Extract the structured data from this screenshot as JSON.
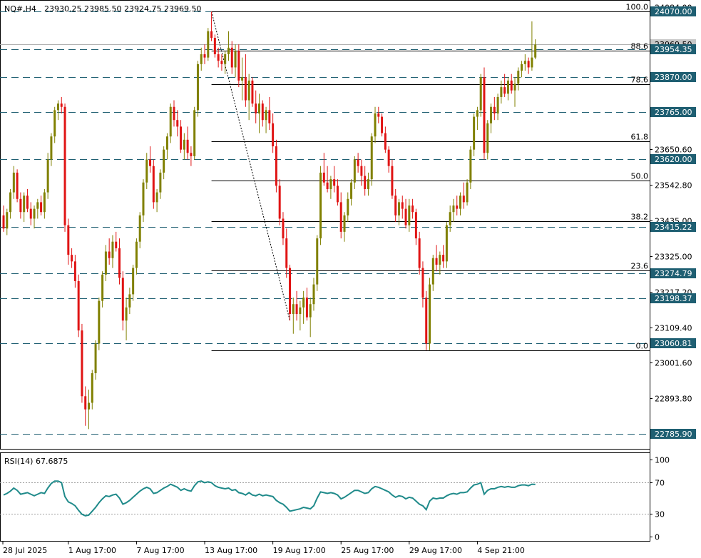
{
  "header": {
    "symbol": "NQ#,H4",
    "ohlc": "23930.25 23985.50 23924.75 23969.50"
  },
  "chart_data": [
    {
      "type": "candlestick",
      "symbol": "NQ#",
      "timeframe": "H4",
      "ohlc_last": {
        "open": 23930.25,
        "high": 23985.5,
        "low": 23924.75,
        "close": 23969.5
      },
      "ylim": [
        22740,
        24105
      ],
      "y_ticks": [
        24084.0,
        23650.6,
        23542.8,
        23435.0,
        23325.0,
        23217.2,
        23109.4,
        23001.6,
        22893.8
      ],
      "x_ticks": [
        "28 Jul 2025",
        "1 Aug 17:00",
        "7 Aug 17:00",
        "13 Aug 17:00",
        "19 Aug 17:00",
        "25 Aug 17:00",
        "29 Aug 17:00",
        "4 Sep 21:00"
      ],
      "current_price": 23969.5,
      "current_price_label": "23969.50",
      "levels": [
        {
          "value": 24070.0,
          "label": "24070.00"
        },
        {
          "value": 23954.35,
          "label": "23954.35"
        },
        {
          "value": 23870.0,
          "label": "23870.00"
        },
        {
          "value": 23765.0,
          "label": "23765.00"
        },
        {
          "value": 23620.0,
          "label": "23620.00"
        },
        {
          "value": 23415.22,
          "label": "23415.22"
        },
        {
          "value": 23274.79,
          "label": "23274.79"
        },
        {
          "value": 23198.37,
          "label": "23198.37"
        },
        {
          "value": 23060.81,
          "label": "23060.81"
        },
        {
          "value": 22785.9,
          "label": "22785.90"
        }
      ],
      "fibonacci": {
        "high": 24070.0,
        "low": 23040.0,
        "levels": [
          {
            "ratio": "100.0",
            "value": 24070.0
          },
          {
            "ratio": "88.6",
            "value": 23952.0
          },
          {
            "ratio": "78.6",
            "value": 23850.0
          },
          {
            "ratio": "61.8",
            "value": 23675.0
          },
          {
            "ratio": "50.0",
            "value": 23555.0
          },
          {
            "ratio": "38.2",
            "value": 23433.0
          },
          {
            "ratio": "23.6",
            "value": 23283.0
          },
          {
            "ratio": "0.0",
            "value": 23040.0
          }
        ]
      },
      "candles": [
        [
          23450,
          23480,
          23400,
          23410
        ],
        [
          23410,
          23470,
          23390,
          23460
        ],
        [
          23460,
          23530,
          23440,
          23520
        ],
        [
          23520,
          23600,
          23500,
          23580
        ],
        [
          23580,
          23590,
          23490,
          23500
        ],
        [
          23500,
          23520,
          23440,
          23460
        ],
        [
          23460,
          23520,
          23430,
          23510
        ],
        [
          23510,
          23530,
          23460,
          23470
        ],
        [
          23470,
          23490,
          23420,
          23440
        ],
        [
          23440,
          23480,
          23410,
          23470
        ],
        [
          23470,
          23500,
          23440,
          23490
        ],
        [
          23490,
          23510,
          23450,
          23460
        ],
        [
          23460,
          23530,
          23440,
          23520
        ],
        [
          23520,
          23640,
          23500,
          23620
        ],
        [
          23620,
          23700,
          23600,
          23690
        ],
        [
          23690,
          23780,
          23670,
          23770
        ],
        [
          23770,
          23800,
          23740,
          23790
        ],
        [
          23790,
          23810,
          23760,
          23780
        ],
        [
          23780,
          23790,
          23400,
          23420
        ],
        [
          23420,
          23440,
          23300,
          23330
        ],
        [
          23330,
          23350,
          23290,
          23310
        ],
        [
          23310,
          23330,
          23230,
          23250
        ],
        [
          23250,
          23270,
          23080,
          23100
        ],
        [
          23100,
          23120,
          22880,
          22900
        ],
        [
          22900,
          22930,
          22810,
          22860
        ],
        [
          22860,
          22920,
          22800,
          22880
        ],
        [
          22880,
          22980,
          22860,
          22970
        ],
        [
          22970,
          23070,
          22950,
          23060
        ],
        [
          23060,
          23200,
          23040,
          23190
        ],
        [
          23190,
          23280,
          23170,
          23270
        ],
        [
          23270,
          23360,
          23250,
          23340
        ],
        [
          23340,
          23380,
          23300,
          23320
        ],
        [
          23320,
          23390,
          23290,
          23370
        ],
        [
          23370,
          23400,
          23340,
          23350
        ],
        [
          23350,
          23380,
          23240,
          23260
        ],
        [
          23260,
          23280,
          23100,
          23130
        ],
        [
          23130,
          23200,
          23070,
          23170
        ],
        [
          23170,
          23230,
          23150,
          23210
        ],
        [
          23210,
          23300,
          23190,
          23290
        ],
        [
          23290,
          23380,
          23270,
          23370
        ],
        [
          23370,
          23460,
          23350,
          23450
        ],
        [
          23450,
          23560,
          23430,
          23550
        ],
        [
          23550,
          23640,
          23530,
          23620
        ],
        [
          23620,
          23660,
          23580,
          23600
        ],
        [
          23600,
          23620,
          23470,
          23490
        ],
        [
          23490,
          23530,
          23460,
          23520
        ],
        [
          23520,
          23590,
          23500,
          23580
        ],
        [
          23580,
          23660,
          23560,
          23650
        ],
        [
          23650,
          23700,
          23620,
          23690
        ],
        [
          23690,
          23790,
          23670,
          23780
        ],
        [
          23780,
          23800,
          23720,
          23740
        ],
        [
          23740,
          23770,
          23690,
          23720
        ],
        [
          23720,
          23740,
          23640,
          23650
        ],
        [
          23650,
          23700,
          23620,
          23680
        ],
        [
          23680,
          23720,
          23620,
          23640
        ],
        [
          23640,
          23660,
          23600,
          23630
        ],
        [
          23630,
          23780,
          23620,
          23770
        ],
        [
          23770,
          23920,
          23750,
          23910
        ],
        [
          23910,
          23960,
          23890,
          23940
        ],
        [
          23940,
          23970,
          23910,
          23930
        ],
        [
          23930,
          24020,
          23920,
          24010
        ],
        [
          24010,
          24070,
          23980,
          23990
        ],
        [
          23990,
          24000,
          23930,
          23940
        ],
        [
          23940,
          23960,
          23900,
          23920
        ],
        [
          23920,
          23940,
          23890,
          23910
        ],
        [
          23910,
          23950,
          23880,
          23940
        ],
        [
          23940,
          24010,
          23920,
          23960
        ],
        [
          23960,
          23980,
          23880,
          23900
        ],
        [
          23900,
          23970,
          23870,
          23950
        ],
        [
          23950,
          23970,
          23840,
          23860
        ],
        [
          23860,
          23930,
          23800,
          23870
        ],
        [
          23870,
          23940,
          23780,
          23800
        ],
        [
          23800,
          23880,
          23740,
          23860
        ],
        [
          23860,
          23870,
          23780,
          23790
        ],
        [
          23790,
          23830,
          23730,
          23760
        ],
        [
          23760,
          23820,
          23700,
          23790
        ],
        [
          23790,
          23800,
          23720,
          23740
        ],
        [
          23740,
          23780,
          23700,
          23770
        ],
        [
          23770,
          23810,
          23710,
          23730
        ],
        [
          23730,
          23760,
          23640,
          23660
        ],
        [
          23660,
          23680,
          23520,
          23540
        ],
        [
          23540,
          23560,
          23420,
          23440
        ],
        [
          23440,
          23460,
          23360,
          23380
        ],
        [
          23380,
          23410,
          23260,
          23290
        ],
        [
          23290,
          23300,
          23130,
          23150
        ],
        [
          23150,
          23200,
          23090,
          23180
        ],
        [
          23180,
          23220,
          23130,
          23150
        ],
        [
          23150,
          23190,
          23100,
          23170
        ],
        [
          23170,
          23220,
          23120,
          23200
        ],
        [
          23200,
          23230,
          23130,
          23140
        ],
        [
          23140,
          23200,
          23080,
          23180
        ],
        [
          23180,
          23260,
          23160,
          23240
        ],
        [
          23240,
          23390,
          23220,
          23380
        ],
        [
          23380,
          23600,
          23360,
          23580
        ],
        [
          23580,
          23640,
          23540,
          23550
        ],
        [
          23550,
          23600,
          23520,
          23530
        ],
        [
          23530,
          23570,
          23500,
          23560
        ],
        [
          23560,
          23600,
          23520,
          23540
        ],
        [
          23540,
          23560,
          23480,
          23490
        ],
        [
          23490,
          23520,
          23380,
          23400
        ],
        [
          23400,
          23460,
          23370,
          23450
        ],
        [
          23450,
          23520,
          23430,
          23500
        ],
        [
          23500,
          23560,
          23480,
          23550
        ],
        [
          23550,
          23630,
          23530,
          23620
        ],
        [
          23620,
          23640,
          23580,
          23600
        ],
        [
          23600,
          23620,
          23540,
          23570
        ],
        [
          23570,
          23600,
          23510,
          23530
        ],
        [
          23530,
          23580,
          23510,
          23560
        ],
        [
          23560,
          23700,
          23540,
          23690
        ],
        [
          23690,
          23780,
          23670,
          23760
        ],
        [
          23760,
          23780,
          23730,
          23750
        ],
        [
          23750,
          23760,
          23690,
          23700
        ],
        [
          23700,
          23720,
          23640,
          23650
        ],
        [
          23650,
          23660,
          23580,
          23600
        ],
        [
          23600,
          23620,
          23500,
          23510
        ],
        [
          23510,
          23530,
          23430,
          23450
        ],
        [
          23450,
          23500,
          23420,
          23490
        ],
        [
          23490,
          23510,
          23440,
          23470
        ],
        [
          23470,
          23500,
          23410,
          23420
        ],
        [
          23420,
          23500,
          23400,
          23480
        ],
        [
          23480,
          23500,
          23440,
          23460
        ],
        [
          23460,
          23470,
          23360,
          23380
        ],
        [
          23380,
          23400,
          23270,
          23290
        ],
        [
          23290,
          23310,
          23170,
          23200
        ],
        [
          23200,
          23220,
          23040,
          23060
        ],
        [
          23060,
          23260,
          23040,
          23240
        ],
        [
          23240,
          23330,
          23220,
          23320
        ],
        [
          23320,
          23360,
          23280,
          23300
        ],
        [
          23300,
          23340,
          23270,
          23330
        ],
        [
          23330,
          23360,
          23290,
          23310
        ],
        [
          23310,
          23430,
          23290,
          23420
        ],
        [
          23420,
          23480,
          23400,
          23460
        ],
        [
          23460,
          23500,
          23430,
          23480
        ],
        [
          23480,
          23510,
          23450,
          23470
        ],
        [
          23470,
          23520,
          23450,
          23510
        ],
        [
          23510,
          23550,
          23470,
          23490
        ],
        [
          23490,
          23560,
          23480,
          23550
        ],
        [
          23550,
          23660,
          23530,
          23650
        ],
        [
          23650,
          23760,
          23630,
          23750
        ],
        [
          23750,
          23780,
          23710,
          23770
        ],
        [
          23770,
          23880,
          23750,
          23870
        ],
        [
          23870,
          23900,
          23620,
          23640
        ],
        [
          23640,
          23740,
          23620,
          23730
        ],
        [
          23730,
          23790,
          23700,
          23780
        ],
        [
          23780,
          23810,
          23740,
          23760
        ],
        [
          23760,
          23820,
          23740,
          23810
        ],
        [
          23810,
          23860,
          23790,
          23840
        ],
        [
          23840,
          23880,
          23810,
          23820
        ],
        [
          23820,
          23870,
          23800,
          23860
        ],
        [
          23860,
          23880,
          23820,
          23830
        ],
        [
          23830,
          23870,
          23780,
          23850
        ],
        [
          23850,
          23900,
          23830,
          23890
        ],
        [
          23890,
          23920,
          23870,
          23910
        ],
        [
          23910,
          23940,
          23890,
          23920
        ],
        [
          23920,
          23930,
          23880,
          23900
        ],
        [
          23900,
          24040,
          23890,
          23930
        ],
        [
          23930,
          23985.5,
          23924.75,
          23969.5
        ]
      ],
      "fib_line_from_index": 61,
      "fib_line_to_index": 84
    },
    {
      "type": "line",
      "name": "RSI(14)",
      "title": "RSI(14) 67.6875",
      "ylim": [
        0,
        100
      ],
      "y_ticks": [
        100,
        70,
        30,
        0
      ],
      "levels": [
        70,
        30
      ],
      "values": [
        54,
        56,
        59,
        63,
        60,
        55,
        56,
        57,
        55,
        53,
        55,
        57,
        56,
        63,
        69,
        72,
        72,
        70,
        52,
        45,
        43,
        40,
        34,
        29,
        27,
        28,
        33,
        38,
        44,
        49,
        53,
        52,
        54,
        55,
        50,
        42,
        44,
        47,
        51,
        55,
        59,
        62,
        64,
        62,
        56,
        57,
        60,
        63,
        65,
        68,
        66,
        64,
        60,
        62,
        60,
        59,
        66,
        71,
        72,
        70,
        71,
        70,
        66,
        64,
        63,
        62,
        63,
        60,
        61,
        57,
        56,
        54,
        57,
        54,
        53,
        55,
        53,
        54,
        53,
        52,
        47,
        44,
        42,
        38,
        33,
        34,
        35,
        36,
        38,
        37,
        36,
        40,
        50,
        58,
        57,
        56,
        57,
        56,
        54,
        49,
        51,
        54,
        57,
        60,
        60,
        58,
        56,
        57,
        62,
        65,
        64,
        62,
        60,
        58,
        54,
        51,
        53,
        52,
        49,
        51,
        50,
        46,
        42,
        40,
        35,
        46,
        50,
        49,
        50,
        50,
        53,
        55,
        56,
        55,
        57,
        57,
        58,
        63,
        67,
        68,
        70,
        55,
        60,
        62,
        62,
        64,
        65,
        64,
        65,
        64,
        64,
        66,
        67,
        67,
        66,
        68,
        67.7
      ]
    }
  ]
}
